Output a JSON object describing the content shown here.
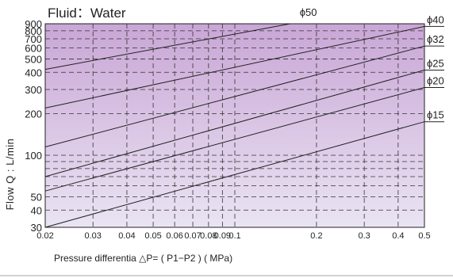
{
  "chart_data": {
    "type": "line",
    "title": "Fluid：Water",
    "xlabel": "Pressure differentia  △P= ( P1−P2 ) ( MPa)",
    "ylabel": "Flow Q : L/min",
    "x_scale": "log",
    "y_scale": "log",
    "xlim": [
      0.02,
      0.5
    ],
    "ylim": [
      30,
      900
    ],
    "x_ticks": [
      {
        "value": 0.02,
        "label": "0.02"
      },
      {
        "value": 0.03,
        "label": "0.03"
      },
      {
        "value": 0.04,
        "label": "0.04"
      },
      {
        "value": 0.05,
        "label": "0.05"
      },
      {
        "value": 0.06,
        "label": "0.06"
      },
      {
        "value": 0.07,
        "label": "0.07"
      },
      {
        "value": 0.08,
        "label": "0.08"
      },
      {
        "value": 0.09,
        "label": "0.09"
      },
      {
        "value": 0.1,
        "label": "0.1"
      },
      {
        "value": 0.2,
        "label": "0.2"
      },
      {
        "value": 0.3,
        "label": "0.3"
      },
      {
        "value": 0.4,
        "label": "0.4"
      },
      {
        "value": 0.5,
        "label": "0.5"
      }
    ],
    "y_ticks": [
      {
        "value": 30,
        "label": "30"
      },
      {
        "value": 40,
        "label": "40"
      },
      {
        "value": 50,
        "label": "50"
      },
      {
        "value": 60,
        "label": ""
      },
      {
        "value": 70,
        "label": ""
      },
      {
        "value": 80,
        "label": ""
      },
      {
        "value": 90,
        "label": ""
      },
      {
        "value": 100,
        "label": "100"
      },
      {
        "value": 200,
        "label": "200"
      },
      {
        "value": 300,
        "label": "300"
      },
      {
        "value": 400,
        "label": "400"
      },
      {
        "value": 500,
        "label": "500"
      },
      {
        "value": 600,
        "label": "600"
      },
      {
        "value": 700,
        "label": "700"
      },
      {
        "value": 800,
        "label": "800"
      },
      {
        "value": 900,
        "label": "900"
      }
    ],
    "grid": true,
    "background_gradient": [
      "#c9a6d6",
      "#eae4f3"
    ],
    "series": [
      {
        "name": "ϕ15",
        "x": [
          0.02,
          0.5
        ],
        "y": [
          30,
          175
        ]
      },
      {
        "name": "ϕ20",
        "x": [
          0.02,
          0.5
        ],
        "y": [
          55,
          310
        ]
      },
      {
        "name": "ϕ25",
        "x": [
          0.02,
          0.5
        ],
        "y": [
          70,
          415
        ]
      },
      {
        "name": "ϕ32",
        "x": [
          0.02,
          0.5
        ],
        "y": [
          115,
          620
        ]
      },
      {
        "name": "ϕ40",
        "x": [
          0.02,
          0.5
        ],
        "y": [
          220,
          860
        ]
      },
      {
        "name": "ϕ50",
        "x": [
          0.02,
          0.16
        ],
        "y": [
          420,
          900
        ]
      }
    ]
  }
}
